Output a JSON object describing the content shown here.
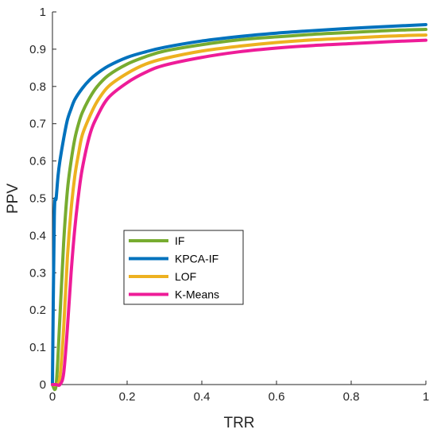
{
  "chart_data": {
    "type": "line",
    "title": "",
    "xlabel": "TRR",
    "ylabel": "PPV",
    "xlim": [
      0,
      1
    ],
    "ylim": [
      0,
      1
    ],
    "xticks": [
      "0",
      "0.2",
      "0.4",
      "0.6",
      "0.8",
      "1"
    ],
    "yticks": [
      "0",
      "0.1",
      "0.2",
      "0.3",
      "0.4",
      "0.5",
      "0.6",
      "0.7",
      "0.8",
      "0.9",
      "1"
    ],
    "grid": false,
    "legend_position": "center-left",
    "series": [
      {
        "name": "IF",
        "color": "#77AC30",
        "x": [
          0,
          0.01,
          0.02,
          0.03,
          0.04,
          0.05,
          0.06,
          0.07,
          0.08,
          0.1,
          0.12,
          0.15,
          0.2,
          0.25,
          0.3,
          0.4,
          0.5,
          0.6,
          0.7,
          0.8,
          0.9,
          1.0
        ],
        "y": [
          0,
          0.0,
          0.18,
          0.38,
          0.52,
          0.6,
          0.66,
          0.7,
          0.73,
          0.77,
          0.8,
          0.83,
          0.86,
          0.88,
          0.895,
          0.912,
          0.925,
          0.933,
          0.94,
          0.945,
          0.95,
          0.953
        ]
      },
      {
        "name": "KPCA-IF",
        "color": "#0072BD",
        "x": [
          0,
          0.005,
          0.01,
          0.015,
          0.02,
          0.03,
          0.04,
          0.05,
          0.06,
          0.08,
          0.1,
          0.12,
          0.15,
          0.2,
          0.25,
          0.3,
          0.4,
          0.5,
          0.6,
          0.7,
          0.8,
          0.9,
          1.0
        ],
        "y": [
          0,
          0.45,
          0.5,
          0.56,
          0.6,
          0.66,
          0.71,
          0.74,
          0.765,
          0.795,
          0.818,
          0.835,
          0.855,
          0.878,
          0.893,
          0.905,
          0.922,
          0.934,
          0.943,
          0.95,
          0.956,
          0.961,
          0.966
        ]
      },
      {
        "name": "LOF",
        "color": "#EDB120",
        "x": [
          0,
          0.01,
          0.02,
          0.03,
          0.04,
          0.05,
          0.06,
          0.07,
          0.08,
          0.1,
          0.12,
          0.15,
          0.2,
          0.25,
          0.3,
          0.4,
          0.5,
          0.6,
          0.7,
          0.8,
          0.9,
          1.0
        ],
        "y": [
          0,
          0.0,
          0.02,
          0.15,
          0.34,
          0.47,
          0.56,
          0.62,
          0.67,
          0.72,
          0.76,
          0.8,
          0.835,
          0.86,
          0.875,
          0.895,
          0.908,
          0.918,
          0.925,
          0.93,
          0.935,
          0.938
        ]
      },
      {
        "name": "K-Means",
        "color": "#EE1C98",
        "x": [
          0,
          0.01,
          0.02,
          0.03,
          0.04,
          0.05,
          0.06,
          0.07,
          0.08,
          0.1,
          0.12,
          0.15,
          0.2,
          0.25,
          0.3,
          0.4,
          0.5,
          0.6,
          0.7,
          0.8,
          0.9,
          1.0
        ],
        "y": [
          0,
          0.0,
          0.0,
          0.03,
          0.15,
          0.3,
          0.42,
          0.51,
          0.58,
          0.67,
          0.72,
          0.77,
          0.81,
          0.838,
          0.857,
          0.878,
          0.893,
          0.903,
          0.91,
          0.915,
          0.92,
          0.924
        ]
      }
    ]
  }
}
